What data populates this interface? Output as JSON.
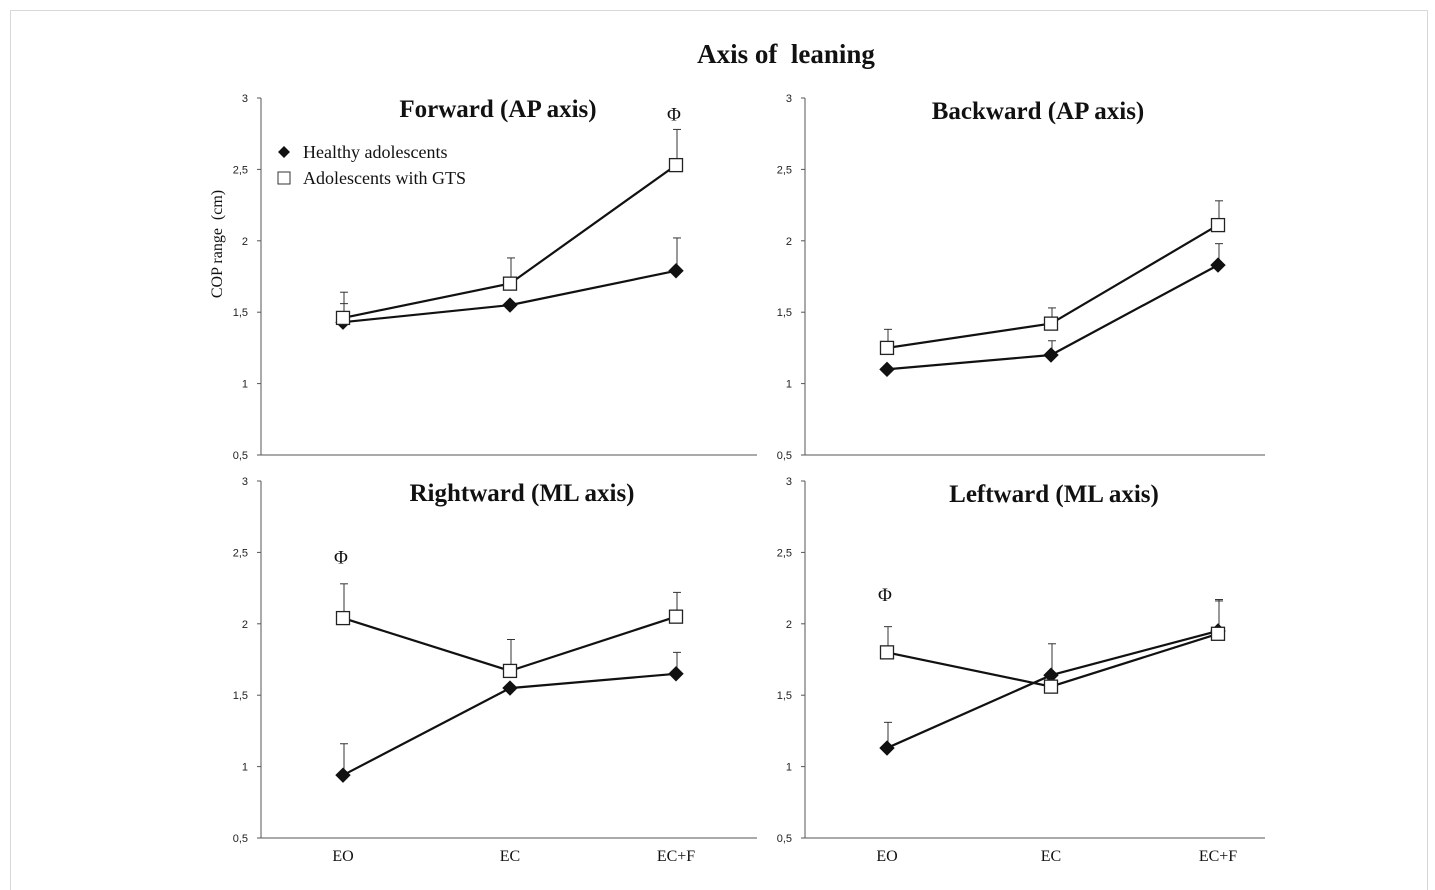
{
  "figure_title": "Axis of  leaning",
  "ylabel": "COP range  (cm)",
  "colors": {
    "axis": "#555555",
    "line": "#111111",
    "healthy_marker": "#111111",
    "gts_marker_fill": "#ffffff"
  },
  "legend": {
    "items": [
      {
        "name": "Healthy adolescents",
        "marker": "filled-diamond"
      },
      {
        "name": "Adolescents with GTS",
        "marker": "open-square"
      }
    ],
    "placement": "top-left of first panel"
  },
  "chart_data": [
    {
      "type": "line",
      "title": "Forward (AP axis)",
      "categories": [
        "EO",
        "EC",
        "EC+F"
      ],
      "ylim": [
        0.5,
        3
      ],
      "yticks": [
        "0,5",
        "1",
        "1,5",
        "2",
        "2,5",
        "3"
      ],
      "show_x_tick_labels": false,
      "series": [
        {
          "name": "Healthy adolescents",
          "values": [
            1.43,
            1.55,
            1.79
          ],
          "error": [
            0.13,
            null,
            0.23
          ]
        },
        {
          "name": "Adolescents with GTS",
          "values": [
            1.46,
            1.7,
            2.53
          ],
          "error": [
            0.18,
            0.18,
            0.25
          ]
        }
      ],
      "annotations": [
        {
          "text": "Φ",
          "category": "EC+F",
          "y": 2.89
        }
      ]
    },
    {
      "type": "line",
      "title": "Backward (AP axis)",
      "categories": [
        "EO",
        "EC",
        "EC+F"
      ],
      "ylim": [
        0.5,
        3
      ],
      "yticks": [
        "0,5",
        "1",
        "1,5",
        "2",
        "2,5",
        "3"
      ],
      "show_x_tick_labels": false,
      "series": [
        {
          "name": "Healthy adolescents",
          "values": [
            1.1,
            1.2,
            1.83
          ],
          "error": [
            null,
            0.1,
            0.15
          ]
        },
        {
          "name": "Adolescents with GTS",
          "values": [
            1.25,
            1.42,
            2.11
          ],
          "error": [
            0.13,
            0.11,
            0.17
          ]
        }
      ],
      "annotations": []
    },
    {
      "type": "line",
      "title": "Rightward (ML axis)",
      "categories": [
        "EO",
        "EC",
        "EC+F"
      ],
      "ylim": [
        0.5,
        3
      ],
      "yticks": [
        "0,5",
        "1",
        "1,5",
        "2",
        "2,5",
        "3"
      ],
      "show_x_tick_labels": true,
      "series": [
        {
          "name": "Healthy adolescents",
          "values": [
            0.94,
            1.55,
            1.65
          ],
          "error": [
            0.22,
            null,
            0.15
          ]
        },
        {
          "name": "Adolescents with GTS",
          "values": [
            2.04,
            1.67,
            2.05
          ],
          "error": [
            0.24,
            0.22,
            0.17
          ]
        }
      ],
      "annotations": [
        {
          "text": "Φ",
          "category": "EO",
          "y": 2.47
        }
      ]
    },
    {
      "type": "line",
      "title": "Leftward (ML axis)",
      "categories": [
        "EO",
        "EC",
        "EC+F"
      ],
      "ylim": [
        0.5,
        3
      ],
      "yticks": [
        "0,5",
        "1",
        "1,5",
        "2",
        "2,5",
        "3"
      ],
      "show_x_tick_labels": true,
      "series": [
        {
          "name": "Healthy adolescents",
          "values": [
            1.13,
            1.64,
            1.95
          ],
          "error": [
            0.18,
            0.22,
            0.22
          ]
        },
        {
          "name": "Adolescents with GTS",
          "values": [
            1.8,
            1.56,
            1.93
          ],
          "error": [
            0.18,
            null,
            0.23
          ]
        }
      ],
      "annotations": [
        {
          "text": "Φ",
          "category": "EO",
          "y": 2.21
        }
      ]
    }
  ]
}
